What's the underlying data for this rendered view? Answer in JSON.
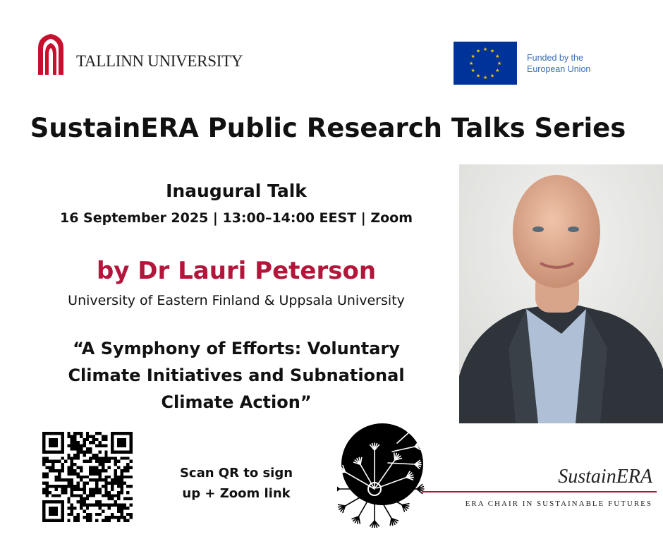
{
  "header": {
    "university": "TALLINN UNIVERSITY",
    "funding_line1": "Funded by the",
    "funding_line2": "European Union",
    "colors": {
      "tu_red": "#c8102e",
      "eu_blue": "#003399",
      "eu_star": "#ffcc00"
    }
  },
  "title": "SustainERA Public Research Talks Series",
  "talk": {
    "type": "Inaugural Talk",
    "meta": "16 September 2025 | 13:00–14:00 EEST | Zoom",
    "speaker": "by Dr Lauri Peterson",
    "affiliation": "University of Eastern Finland & Uppsala University",
    "title_line1": "“A Symphony of Efforts: Voluntary",
    "title_line2": "Climate Initiatives and Subnational",
    "title_line3": "Climate Action”",
    "accent_color": "#b3163a"
  },
  "signup": {
    "line1": "Scan QR to sign",
    "line2": "up + Zoom link"
  },
  "footer_logo": {
    "name": "SustainERA",
    "subtitle": "ERA CHAIR IN SUSTAINABLE FUTURES"
  }
}
